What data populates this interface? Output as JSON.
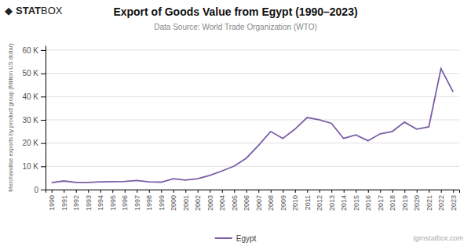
{
  "chart_data": {
    "type": "line",
    "title": "Export of Goods Value from Egypt (1990–2023)",
    "subtitle": "Data Source: World Trade Organization (WTO)",
    "y_label": "Merchandise exports by product group (Million US dollar)",
    "logo": [
      "◆",
      "STAT",
      "BOX"
    ],
    "watermark": "tgmstatbox.com",
    "x": [
      1990,
      1991,
      1992,
      1993,
      1994,
      1995,
      1996,
      1997,
      1998,
      1999,
      2000,
      2001,
      2002,
      2003,
      2004,
      2005,
      2006,
      2007,
      2008,
      2009,
      2010,
      2011,
      2012,
      2013,
      2014,
      2015,
      2016,
      2017,
      2018,
      2019,
      2020,
      2021,
      2022,
      2023
    ],
    "series": [
      {
        "name": "Egypt",
        "color": "#7B5EA7",
        "values": [
          3000,
          3700,
          3100,
          3100,
          3300,
          3400,
          3500,
          3900,
          3300,
          3200,
          4700,
          4100,
          4700,
          6100,
          8000,
          10100,
          13500,
          19000,
          25000,
          22000,
          26000,
          31000,
          30000,
          28500,
          22000,
          23500,
          21000,
          24000,
          25000,
          29000,
          26000,
          27000,
          52000,
          42000
        ]
      }
    ],
    "xlim": [
      1989.5,
      2023.5
    ],
    "xticks": [
      1990,
      1991,
      1992,
      1993,
      1994,
      1995,
      1996,
      1997,
      1998,
      1999,
      2000,
      2001,
      2002,
      2003,
      2004,
      2005,
      2006,
      2007,
      2008,
      2009,
      2010,
      2011,
      2012,
      2013,
      2014,
      2015,
      2016,
      2017,
      2018,
      2019,
      2020,
      2021,
      2022,
      2023
    ],
    "ylim": [
      0,
      62000
    ],
    "yticks": [
      0,
      {
        "value": 10000,
        "label": "10 K"
      },
      {
        "value": 20000,
        "label": "20 K"
      },
      {
        "value": 30000,
        "label": "30 K"
      },
      {
        "value": 40000,
        "label": "40 K"
      },
      {
        "value": 50000,
        "label": "50 K"
      },
      {
        "value": 60000,
        "label": "60 K"
      }
    ],
    "grid": true,
    "legend": "bottom"
  }
}
